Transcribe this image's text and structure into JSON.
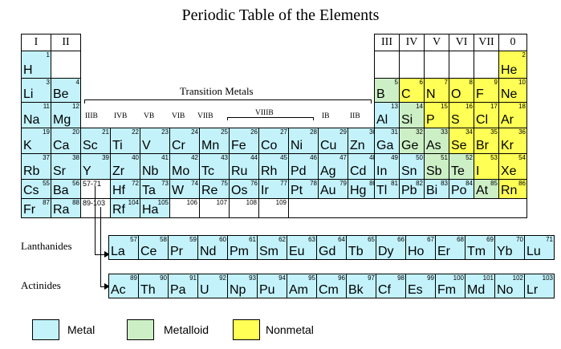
{
  "title": "Periodic Table of the Elements",
  "colors": {
    "metal": "#c3f2fb",
    "metalloid": "#cdefc6",
    "nonmetal": "#ffff55",
    "empty": "#ffffff"
  },
  "group_labels": {
    "I": "I",
    "II": "II",
    "III": "III",
    "IV": "IV",
    "V": "V",
    "VI": "VI",
    "VII": "VII",
    "0": "0",
    "IIIB": "IIIB",
    "IVB": "IVB",
    "VB": "VB",
    "VIB": "VIB",
    "VIIB": "VIIB",
    "VIIIB": "VIIIB",
    "IB": "IB",
    "IIB": "IIB"
  },
  "transition_label": "Transition Metals",
  "lanthanides_label": "Lanthanides",
  "actinides_label": "Actinides",
  "placeholders": {
    "lan": "57-71",
    "act": "89-103"
  },
  "legend": [
    {
      "label": "Metal",
      "type": "metal"
    },
    {
      "label": "Metalloid",
      "type": "metalloid"
    },
    {
      "label": "Nonmetal",
      "type": "nonmetal"
    }
  ],
  "elements": [
    {
      "s": "H",
      "n": "1",
      "r": 1,
      "c": 1,
      "t": "metal"
    },
    {
      "s": "He",
      "n": "2",
      "r": 1,
      "c": 18,
      "t": "nonmetal"
    },
    {
      "s": "Li",
      "n": "3",
      "r": 2,
      "c": 1,
      "t": "metal"
    },
    {
      "s": "Be",
      "n": "4",
      "r": 2,
      "c": 2,
      "t": "metal"
    },
    {
      "s": "B",
      "n": "5",
      "r": 2,
      "c": 13,
      "t": "metalloid"
    },
    {
      "s": "C",
      "n": "6",
      "r": 2,
      "c": 14,
      "t": "nonmetal"
    },
    {
      "s": "N",
      "n": "7",
      "r": 2,
      "c": 15,
      "t": "nonmetal"
    },
    {
      "s": "O",
      "n": "8",
      "r": 2,
      "c": 16,
      "t": "nonmetal"
    },
    {
      "s": "F",
      "n": "9",
      "r": 2,
      "c": 17,
      "t": "nonmetal"
    },
    {
      "s": "Ne",
      "n": "10",
      "r": 2,
      "c": 18,
      "t": "nonmetal"
    },
    {
      "s": "Na",
      "n": "11",
      "r": 3,
      "c": 1,
      "t": "metal"
    },
    {
      "s": "Mg",
      "n": "12",
      "r": 3,
      "c": 2,
      "t": "metal"
    },
    {
      "s": "Al",
      "n": "13",
      "r": 3,
      "c": 13,
      "t": "metal"
    },
    {
      "s": "Si",
      "n": "14",
      "r": 3,
      "c": 14,
      "t": "metalloid"
    },
    {
      "s": "P",
      "n": "15",
      "r": 3,
      "c": 15,
      "t": "nonmetal"
    },
    {
      "s": "S",
      "n": "16",
      "r": 3,
      "c": 16,
      "t": "nonmetal"
    },
    {
      "s": "Cl",
      "n": "17",
      "r": 3,
      "c": 17,
      "t": "nonmetal"
    },
    {
      "s": "Ar",
      "n": "18",
      "r": 3,
      "c": 18,
      "t": "nonmetal"
    },
    {
      "s": "K",
      "n": "19",
      "r": 4,
      "c": 1,
      "t": "metal"
    },
    {
      "s": "Ca",
      "n": "20",
      "r": 4,
      "c": 2,
      "t": "metal"
    },
    {
      "s": "Sc",
      "n": "21",
      "r": 4,
      "c": 3,
      "t": "metal"
    },
    {
      "s": "Ti",
      "n": "22",
      "r": 4,
      "c": 4,
      "t": "metal"
    },
    {
      "s": "V",
      "n": "23",
      "r": 4,
      "c": 5,
      "t": "metal"
    },
    {
      "s": "Cr",
      "n": "24",
      "r": 4,
      "c": 6,
      "t": "metal"
    },
    {
      "s": "Mn",
      "n": "25",
      "r": 4,
      "c": 7,
      "t": "metal"
    },
    {
      "s": "Fe",
      "n": "26",
      "r": 4,
      "c": 8,
      "t": "metal"
    },
    {
      "s": "Co",
      "n": "27",
      "r": 4,
      "c": 9,
      "t": "metal"
    },
    {
      "s": "Ni",
      "n": "28",
      "r": 4,
      "c": 10,
      "t": "metal"
    },
    {
      "s": "Cu",
      "n": "29",
      "r": 4,
      "c": 11,
      "t": "metal"
    },
    {
      "s": "Zn",
      "n": "30",
      "r": 4,
      "c": 12,
      "t": "metal"
    },
    {
      "s": "Ga",
      "n": "31",
      "r": 4,
      "c": 13,
      "t": "metal"
    },
    {
      "s": "Ge",
      "n": "32",
      "r": 4,
      "c": 14,
      "t": "metalloid"
    },
    {
      "s": "As",
      "n": "33",
      "r": 4,
      "c": 15,
      "t": "metalloid"
    },
    {
      "s": "Se",
      "n": "34",
      "r": 4,
      "c": 16,
      "t": "nonmetal"
    },
    {
      "s": "Br",
      "n": "35",
      "r": 4,
      "c": 17,
      "t": "nonmetal"
    },
    {
      "s": "Kr",
      "n": "36",
      "r": 4,
      "c": 18,
      "t": "nonmetal"
    },
    {
      "s": "Rb",
      "n": "37",
      "r": 5,
      "c": 1,
      "t": "metal"
    },
    {
      "s": "Sr",
      "n": "38",
      "r": 5,
      "c": 2,
      "t": "metal"
    },
    {
      "s": "Y",
      "n": "39",
      "r": 5,
      "c": 3,
      "t": "metal"
    },
    {
      "s": "Zr",
      "n": "40",
      "r": 5,
      "c": 4,
      "t": "metal"
    },
    {
      "s": "Nb",
      "n": "41",
      "r": 5,
      "c": 5,
      "t": "metal"
    },
    {
      "s": "Mo",
      "n": "42",
      "r": 5,
      "c": 6,
      "t": "metal"
    },
    {
      "s": "Tc",
      "n": "43",
      "r": 5,
      "c": 7,
      "t": "metal"
    },
    {
      "s": "Ru",
      "n": "44",
      "r": 5,
      "c": 8,
      "t": "metal"
    },
    {
      "s": "Rh",
      "n": "45",
      "r": 5,
      "c": 9,
      "t": "metal"
    },
    {
      "s": "Pd",
      "n": "46",
      "r": 5,
      "c": 10,
      "t": "metal"
    },
    {
      "s": "Ag",
      "n": "47",
      "r": 5,
      "c": 11,
      "t": "metal"
    },
    {
      "s": "Cd",
      "n": "48",
      "r": 5,
      "c": 12,
      "t": "metal"
    },
    {
      "s": "In",
      "n": "49",
      "r": 5,
      "c": 13,
      "t": "metal"
    },
    {
      "s": "Sn",
      "n": "50",
      "r": 5,
      "c": 14,
      "t": "metal"
    },
    {
      "s": "Sb",
      "n": "51",
      "r": 5,
      "c": 15,
      "t": "metalloid"
    },
    {
      "s": "Te",
      "n": "52",
      "r": 5,
      "c": 16,
      "t": "metalloid"
    },
    {
      "s": "I",
      "n": "53",
      "r": 5,
      "c": 17,
      "t": "nonmetal"
    },
    {
      "s": "Xe",
      "n": "54",
      "r": 5,
      "c": 18,
      "t": "nonmetal"
    },
    {
      "s": "Cs",
      "n": "55",
      "r": 6,
      "c": 1,
      "t": "metal"
    },
    {
      "s": "Ba",
      "n": "56",
      "r": 6,
      "c": 2,
      "t": "metal"
    },
    {
      "s": "Hf",
      "n": "72",
      "r": 6,
      "c": 4,
      "t": "metal"
    },
    {
      "s": "Ta",
      "n": "73",
      "r": 6,
      "c": 5,
      "t": "metal"
    },
    {
      "s": "W",
      "n": "74",
      "r": 6,
      "c": 6,
      "t": "metal"
    },
    {
      "s": "Re",
      "n": "75",
      "r": 6,
      "c": 7,
      "t": "metal"
    },
    {
      "s": "Os",
      "n": "76",
      "r": 6,
      "c": 8,
      "t": "metal"
    },
    {
      "s": "Ir",
      "n": "77",
      "r": 6,
      "c": 9,
      "t": "metal"
    },
    {
      "s": "Pt",
      "n": "78",
      "r": 6,
      "c": 10,
      "t": "metal"
    },
    {
      "s": "Au",
      "n": "79",
      "r": 6,
      "c": 11,
      "t": "metal"
    },
    {
      "s": "Hg",
      "n": "80",
      "r": 6,
      "c": 12,
      "t": "metal"
    },
    {
      "s": "Tl",
      "n": "81",
      "r": 6,
      "c": 13,
      "t": "metal"
    },
    {
      "s": "Pb",
      "n": "82",
      "r": 6,
      "c": 14,
      "t": "metal"
    },
    {
      "s": "Bi",
      "n": "83",
      "r": 6,
      "c": 15,
      "t": "metal"
    },
    {
      "s": "Po",
      "n": "84",
      "r": 6,
      "c": 16,
      "t": "metal"
    },
    {
      "s": "At",
      "n": "85",
      "r": 6,
      "c": 17,
      "t": "metalloid"
    },
    {
      "s": "Rn",
      "n": "86",
      "r": 6,
      "c": 18,
      "t": "nonmetal"
    },
    {
      "s": "Fr",
      "n": "87",
      "r": 7,
      "c": 1,
      "t": "metal"
    },
    {
      "s": "Ra",
      "n": "88",
      "r": 7,
      "c": 2,
      "t": "metal"
    },
    {
      "s": "Rf",
      "n": "104",
      "r": 7,
      "c": 4,
      "t": "metal"
    },
    {
      "s": "Ha",
      "n": "105",
      "r": 7,
      "c": 5,
      "t": "metal"
    },
    {
      "s": "",
      "n": "106",
      "r": 7,
      "c": 6,
      "t": "empty"
    },
    {
      "s": "",
      "n": "107",
      "r": 7,
      "c": 7,
      "t": "empty"
    },
    {
      "s": "",
      "n": "108",
      "r": 7,
      "c": 8,
      "t": "empty"
    },
    {
      "s": "",
      "n": "109",
      "r": 7,
      "c": 9,
      "t": "empty"
    }
  ],
  "lanthanides": [
    {
      "s": "La",
      "n": "57"
    },
    {
      "s": "Ce",
      "n": "58"
    },
    {
      "s": "Pr",
      "n": "59"
    },
    {
      "s": "Nd",
      "n": "60"
    },
    {
      "s": "Pm",
      "n": "61"
    },
    {
      "s": "Sm",
      "n": "62"
    },
    {
      "s": "Eu",
      "n": "63"
    },
    {
      "s": "Gd",
      "n": "64"
    },
    {
      "s": "Tb",
      "n": "65"
    },
    {
      "s": "Dy",
      "n": "66"
    },
    {
      "s": "Ho",
      "n": "67"
    },
    {
      "s": "Er",
      "n": "68"
    },
    {
      "s": "Tm",
      "n": "69"
    },
    {
      "s": "Yb",
      "n": "70"
    },
    {
      "s": "Lu",
      "n": "71"
    }
  ],
  "actinides": [
    {
      "s": "Ac",
      "n": "89"
    },
    {
      "s": "Th",
      "n": "90"
    },
    {
      "s": "Pa",
      "n": "91"
    },
    {
      "s": "U",
      "n": "92"
    },
    {
      "s": "Np",
      "n": "93"
    },
    {
      "s": "Pu",
      "n": "94"
    },
    {
      "s": "Am",
      "n": "95"
    },
    {
      "s": "Cm",
      "n": "96"
    },
    {
      "s": "Bk",
      "n": "97"
    },
    {
      "s": "Cf",
      "n": "98"
    },
    {
      "s": "Es",
      "n": "99"
    },
    {
      "s": "Fm",
      "n": "100"
    },
    {
      "s": "Md",
      "n": "101"
    },
    {
      "s": "No",
      "n": "102"
    },
    {
      "s": "Lr",
      "n": "103"
    }
  ]
}
